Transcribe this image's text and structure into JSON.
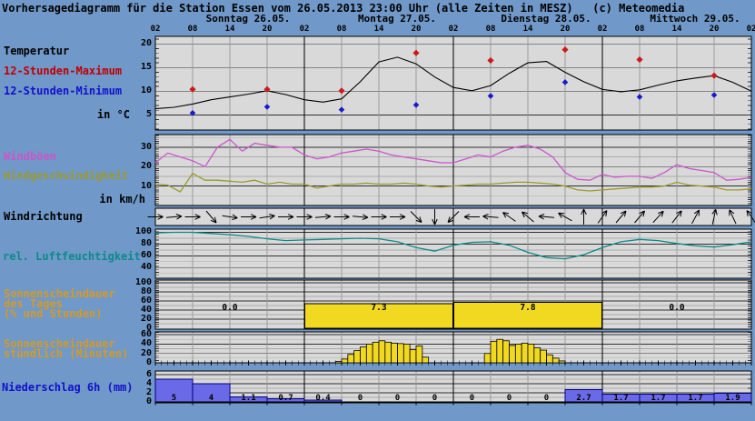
{
  "title": "Vorhersagediagramm für die Station Essen vom 26.05.2013 23:00 Uhr (alle Zeiten in MESZ)   (c) Meteomedia",
  "days": [
    "Sonntag 26.05.",
    "Montag 27.05.",
    "Dienstag 28.05.",
    "Mittwoch 29.05."
  ],
  "hour_labels": [
    "02",
    "08",
    "14",
    "20",
    "02",
    "08",
    "14",
    "20",
    "02",
    "08",
    "14",
    "20",
    "02",
    "08",
    "14",
    "20",
    "02"
  ],
  "labels": {
    "temperature": "Temperatur",
    "max12": "12-Stunden-Maximum",
    "min12": "12-Stunden-Minimum",
    "temp_unit": "in °C",
    "gusts": "Windböen",
    "wind_speed": "Windgeschwindigkeit",
    "wind_unit": "in km/h",
    "wind_direction": "Windrichtung",
    "humidity": "rel. Luftfeuchtigkeit",
    "sun_daily_line1": "Sonnenscheindauer",
    "sun_daily_line2": "des Tages",
    "sun_daily_line3": "(% und Stunden)",
    "sun_hourly_line1": "Sonnenscheindauer",
    "sun_hourly_line2": "stündlich (Minuten)",
    "precipitation": "Niederschlag 6h (mm)"
  },
  "axes": {
    "temperature": [
      "20",
      "15",
      "10",
      "5"
    ],
    "wind": [
      "30",
      "20",
      "10"
    ],
    "humidity": [
      "100",
      "80",
      "60",
      "40"
    ],
    "sunshine_daily": [
      "100",
      "80",
      "60",
      "40",
      "20",
      "0"
    ],
    "sunshine_hourly": [
      "60",
      "40",
      "20",
      "0"
    ],
    "precipitation": [
      "6",
      "4",
      "2",
      "0"
    ]
  },
  "colors": {
    "background": "#7098c8",
    "panel_bg": "#d9d9d9",
    "grid_minor": "#9a9a9a",
    "grid_major": "#303030",
    "temperature_line": "#000000",
    "max_points": "#cc1a1a",
    "min_points": "#1a1acc",
    "gust_line": "#cc55cc",
    "wind_speed_line": "#9a9a30",
    "humidity_line": "#0d8a8a",
    "sunshine_bar": "#f2d921",
    "precip_bar": "#6a6ae8",
    "precip_bar_border": "#000080",
    "sun_label_color": "#d39a28",
    "max_label_color": "#c00000",
    "min_label_color": "#1111cc",
    "precip_label_color": "#1111cc"
  },
  "chart_data": {
    "type": "meteogram",
    "x_hours_total": 96,
    "x_start_label": "Sonntag 02:00",
    "temperature": {
      "unit": "°C",
      "step_h": 3,
      "curve": [
        6.3,
        6.6,
        7.3,
        8.2,
        8.8,
        9.4,
        10.1,
        9.3,
        8.2,
        7.7,
        8.4,
        12.0,
        16.2,
        17.2,
        15.8,
        13.0,
        10.8,
        10.1,
        11.2,
        13.8,
        16.0,
        16.3,
        14.0,
        12.0,
        10.4,
        9.9,
        10.3,
        11.3,
        12.2,
        12.8,
        13.3,
        11.9,
        10.0
      ],
      "max12_hours": [
        6,
        18,
        30,
        42,
        54,
        66,
        78,
        90
      ],
      "max12_values": [
        10.4,
        10.4,
        10.1,
        18.1,
        16.5,
        18.8,
        16.7,
        13.3
      ],
      "min12_hours": [
        6,
        18,
        30,
        42,
        54,
        66,
        78,
        90
      ],
      "min12_values": [
        5.4,
        6.7,
        6.1,
        7.1,
        9.0,
        11.9,
        8.8,
        9.2
      ],
      "yticks": [
        5,
        10,
        15,
        20
      ],
      "ylim": [
        1.8,
        21.6
      ]
    },
    "wind": {
      "unit": "km/h",
      "step_h": 2,
      "gusts": [
        22,
        27,
        25,
        23,
        20,
        30,
        34,
        28,
        32,
        31,
        30,
        30,
        26,
        24,
        25,
        27,
        28,
        29,
        28,
        26,
        25,
        24,
        23,
        22,
        22,
        24,
        26,
        25,
        28,
        30,
        31,
        29,
        25,
        17,
        13.5,
        13,
        16,
        14.5,
        15,
        15,
        14,
        17,
        21,
        19,
        18,
        17,
        13,
        13.5,
        14.5
      ],
      "speed": [
        11,
        10.5,
        7,
        16.5,
        13,
        13,
        12.5,
        12,
        13,
        11,
        12,
        11,
        11,
        9,
        10,
        11,
        11,
        11.5,
        11,
        11,
        11.5,
        11,
        10,
        9.5,
        10,
        10.5,
        11,
        11,
        11.5,
        12,
        12,
        11.5,
        11,
        10,
        8,
        7.5,
        8,
        8.5,
        9,
        9.5,
        9.5,
        10,
        12,
        10.5,
        10,
        9.5,
        8,
        8,
        8.5
      ],
      "yticks": [
        10,
        20,
        30
      ],
      "ylim": [
        0,
        36.5
      ]
    },
    "wind_direction": {
      "step_h": 3,
      "angles_deg_cw_from_east": [
        0,
        -5,
        0,
        50,
        8,
        0,
        -8,
        0,
        0,
        -5,
        0,
        5,
        0,
        0,
        45,
        90,
        135,
        180,
        185,
        215,
        220,
        185,
        210,
        270,
        305,
        310,
        310,
        312,
        308,
        298,
        282,
        245,
        235
      ]
    },
    "humidity": {
      "unit": "%",
      "step_h": 3,
      "curve": [
        99,
        100,
        100,
        98,
        96,
        93,
        89,
        86,
        87,
        88,
        89,
        90,
        89,
        84,
        74,
        68,
        78,
        83,
        84,
        78,
        66,
        57,
        55,
        62,
        74,
        84,
        88,
        86,
        81,
        77,
        75,
        79,
        84
      ],
      "yticks": [
        40,
        60,
        80,
        100
      ],
      "ylim": [
        22,
        105
      ]
    },
    "sunshine_daily": {
      "unit": "% und Stunden",
      "value_labels": [
        "0.0",
        "7.3",
        "7.8",
        "0.0"
      ],
      "bar_pct": [
        0,
        54,
        57,
        0
      ],
      "yticks": [
        0,
        20,
        40,
        60,
        80,
        100
      ],
      "ylim": [
        0,
        100
      ]
    },
    "sunshine_hourly": {
      "unit": "Minuten",
      "days": [
        {
          "day_index": 1,
          "start_hour": 7,
          "minutes": [
            3,
            8,
            18,
            26,
            34,
            40,
            44,
            47,
            44,
            42,
            41,
            40,
            28,
            36,
            12
          ]
        },
        {
          "day_index": 2,
          "start_hour": 7,
          "minutes": [
            20,
            46,
            50,
            47,
            37,
            40,
            42,
            40,
            32,
            27,
            17,
            10,
            4
          ]
        }
      ],
      "yticks": [
        0,
        20,
        40,
        60
      ],
      "ylim": [
        0,
        60
      ]
    },
    "precipitation_6h": {
      "unit": "mm",
      "slot_hours": 6,
      "values": [
        5,
        4,
        1.1,
        0.7,
        0.4,
        0,
        0,
        0,
        0,
        0,
        0,
        2.7,
        1.7,
        1.7,
        1.7,
        1.9
      ],
      "value_labels": [
        "5",
        "4",
        "1.1",
        "0.7",
        "0.4",
        "0",
        "0",
        "0",
        "0",
        "0",
        "0",
        "2.7",
        "1.7",
        "1.7",
        "1.7",
        "1.9"
      ],
      "yticks": [
        0,
        2,
        4,
        6
      ],
      "ylim": [
        0,
        6.8
      ]
    }
  }
}
